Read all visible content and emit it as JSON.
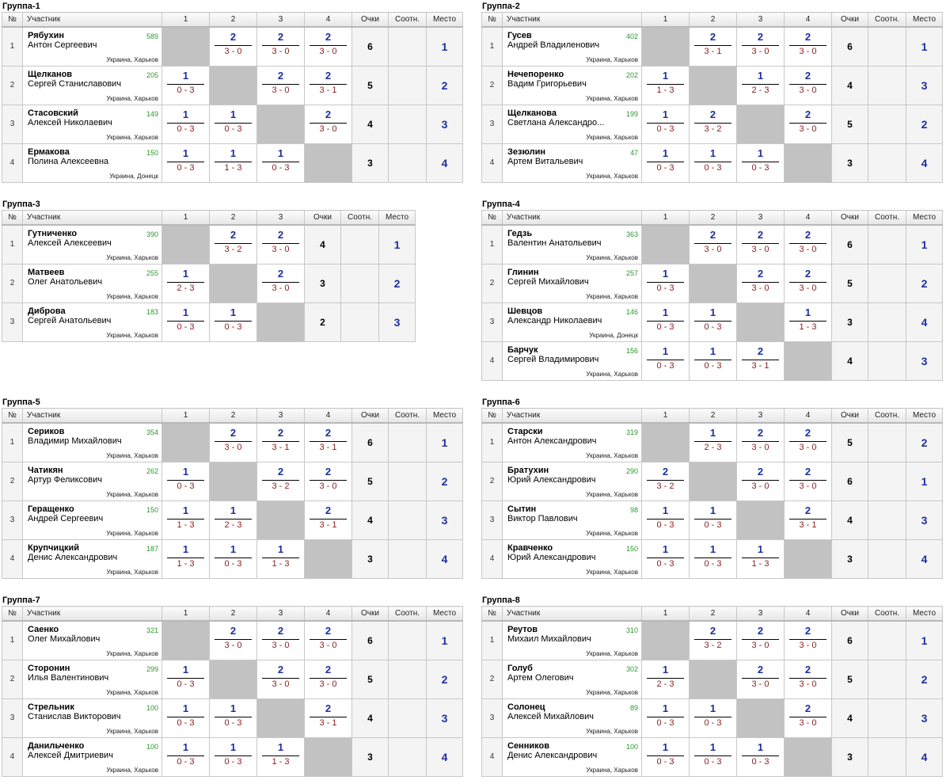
{
  "headers": {
    "num": "№",
    "player": "Участник",
    "points": "Очки",
    "ratio": "Соотн.",
    "place": "Место"
  },
  "groups": [
    {
      "title": "Группа-1",
      "players": [
        {
          "n": "1",
          "surname": "Рябухин",
          "first": "Антон Сергеевич",
          "rating": "589",
          "location": "Украина, Харьков",
          "results": [
            null,
            {
              "p": "2",
              "s": "3 - 0"
            },
            {
              "p": "2",
              "s": "3 - 0"
            },
            {
              "p": "2",
              "s": "3 - 0"
            }
          ],
          "points": "6",
          "place": "1"
        },
        {
          "n": "2",
          "surname": "Щелканов",
          "first": "Сергей Станиславович",
          "rating": "205",
          "location": "Украина, Харьков",
          "results": [
            {
              "p": "1",
              "s": "0 - 3"
            },
            null,
            {
              "p": "2",
              "s": "3 - 0"
            },
            {
              "p": "2",
              "s": "3 - 1"
            }
          ],
          "points": "5",
          "place": "2"
        },
        {
          "n": "3",
          "surname": "Стасовский",
          "first": "Алексей Николаевич",
          "rating": "149",
          "location": "Украина, Харьков",
          "results": [
            {
              "p": "1",
              "s": "0 - 3"
            },
            {
              "p": "1",
              "s": "0 - 3"
            },
            null,
            {
              "p": "2",
              "s": "3 - 0"
            }
          ],
          "points": "4",
          "place": "3"
        },
        {
          "n": "4",
          "surname": "Ермакова",
          "first": "Полина Алексеевна",
          "rating": "150",
          "location": "Украина, Донецк",
          "results": [
            {
              "p": "1",
              "s": "0 - 3"
            },
            {
              "p": "1",
              "s": "1 - 3"
            },
            {
              "p": "1",
              "s": "0 - 3"
            },
            null
          ],
          "points": "3",
          "place": "4"
        }
      ]
    },
    {
      "title": "Группа-2",
      "players": [
        {
          "n": "1",
          "surname": "Гусев",
          "first": "Андрей Владиленович",
          "rating": "402",
          "location": "Украина, Харьков",
          "results": [
            null,
            {
              "p": "2",
              "s": "3 - 1"
            },
            {
              "p": "2",
              "s": "3 - 0"
            },
            {
              "p": "2",
              "s": "3 - 0"
            }
          ],
          "points": "6",
          "place": "1"
        },
        {
          "n": "2",
          "surname": "Нечепоренко",
          "first": "Вадим Григорьевич",
          "rating": "202",
          "location": "Украина, Харьков",
          "results": [
            {
              "p": "1",
              "s": "1 - 3"
            },
            null,
            {
              "p": "1",
              "s": "2 - 3"
            },
            {
              "p": "2",
              "s": "3 - 0"
            }
          ],
          "points": "4",
          "place": "3"
        },
        {
          "n": "3",
          "surname": "Щелканова",
          "first": "Светлана Александро...",
          "rating": "199",
          "location": "Украина, Харьков",
          "results": [
            {
              "p": "1",
              "s": "0 - 3"
            },
            {
              "p": "2",
              "s": "3 - 2"
            },
            null,
            {
              "p": "2",
              "s": "3 - 0"
            }
          ],
          "points": "5",
          "place": "2"
        },
        {
          "n": "4",
          "surname": "Зезюлин",
          "first": "Артем Витальевич",
          "rating": "47",
          "location": "Украина, Харьков",
          "results": [
            {
              "p": "1",
              "s": "0 - 3"
            },
            {
              "p": "1",
              "s": "0 - 3"
            },
            {
              "p": "1",
              "s": "0 - 3"
            },
            null
          ],
          "points": "3",
          "place": "4"
        }
      ]
    },
    {
      "title": "Группа-3",
      "players": [
        {
          "n": "1",
          "surname": "Гутниченко",
          "first": "Алексей Алексеевич",
          "rating": "390",
          "location": "Украина, Харьков",
          "results": [
            null,
            {
              "p": "2",
              "s": "3 - 2"
            },
            {
              "p": "2",
              "s": "3 - 0"
            }
          ],
          "points": "4",
          "place": "1"
        },
        {
          "n": "2",
          "surname": "Матвеев",
          "first": "Олег Анатольевич",
          "rating": "255",
          "location": "Украина, Харьков",
          "results": [
            {
              "p": "1",
              "s": "2 - 3"
            },
            null,
            {
              "p": "2",
              "s": "3 - 0"
            }
          ],
          "points": "3",
          "place": "2"
        },
        {
          "n": "3",
          "surname": "Диброва",
          "first": "Сергей Анатольевич",
          "rating": "183",
          "location": "Украина, Харьков",
          "results": [
            {
              "p": "1",
              "s": "0 - 3"
            },
            {
              "p": "1",
              "s": "0 - 3"
            },
            null
          ],
          "points": "2",
          "place": "3"
        }
      ]
    },
    {
      "title": "Группа-4",
      "players": [
        {
          "n": "1",
          "surname": "Гедзь",
          "first": "Валентин Анатольевич",
          "rating": "363",
          "location": "Украина, Харьков",
          "results": [
            null,
            {
              "p": "2",
              "s": "3 - 0"
            },
            {
              "p": "2",
              "s": "3 - 0"
            },
            {
              "p": "2",
              "s": "3 - 0"
            }
          ],
          "points": "6",
          "place": "1"
        },
        {
          "n": "2",
          "surname": "Глинин",
          "first": "Сергей Михайлович",
          "rating": "257",
          "location": "Украина, Харьков",
          "results": [
            {
              "p": "1",
              "s": "0 - 3"
            },
            null,
            {
              "p": "2",
              "s": "3 - 0"
            },
            {
              "p": "2",
              "s": "3 - 0"
            }
          ],
          "points": "5",
          "place": "2"
        },
        {
          "n": "3",
          "surname": "Шевцов",
          "first": "Александр Николаевич",
          "rating": "146",
          "location": "Украина, Донецк",
          "results": [
            {
              "p": "1",
              "s": "0 - 3"
            },
            {
              "p": "1",
              "s": "0 - 3"
            },
            null,
            {
              "p": "1",
              "s": "1 - 3"
            }
          ],
          "points": "3",
          "place": "4"
        },
        {
          "n": "4",
          "surname": "Барчук",
          "first": "Сергей Владимирович",
          "rating": "156",
          "location": "Украина, Харьков",
          "results": [
            {
              "p": "1",
              "s": "0 - 3"
            },
            {
              "p": "1",
              "s": "0 - 3"
            },
            {
              "p": "2",
              "s": "3 - 1"
            },
            null
          ],
          "points": "4",
          "place": "3"
        }
      ]
    },
    {
      "title": "Группа-5",
      "players": [
        {
          "n": "1",
          "surname": "Сериков",
          "first": "Владимир Михайлович",
          "rating": "354",
          "location": "Украина, Харьков",
          "results": [
            null,
            {
              "p": "2",
              "s": "3 - 0"
            },
            {
              "p": "2",
              "s": "3 - 1"
            },
            {
              "p": "2",
              "s": "3 - 1"
            }
          ],
          "points": "6",
          "place": "1"
        },
        {
          "n": "2",
          "surname": "Чатикян",
          "first": "Артур Феликсович",
          "rating": "262",
          "location": "Украина, Харьков",
          "results": [
            {
              "p": "1",
              "s": "0 - 3"
            },
            null,
            {
              "p": "2",
              "s": "3 - 2"
            },
            {
              "p": "2",
              "s": "3 - 0"
            }
          ],
          "points": "5",
          "place": "2"
        },
        {
          "n": "3",
          "surname": "Геращенко",
          "first": "Андрей Сергеевич",
          "rating": "150",
          "location": "Украина, Харьков",
          "results": [
            {
              "p": "1",
              "s": "1 - 3"
            },
            {
              "p": "1",
              "s": "2 - 3"
            },
            null,
            {
              "p": "2",
              "s": "3 - 1"
            }
          ],
          "points": "4",
          "place": "3"
        },
        {
          "n": "4",
          "surname": "Крупчицкий",
          "first": "Денис Александрович",
          "rating": "187",
          "location": "Украина, Харьков",
          "results": [
            {
              "p": "1",
              "s": "1 - 3"
            },
            {
              "p": "1",
              "s": "0 - 3"
            },
            {
              "p": "1",
              "s": "1 - 3"
            },
            null
          ],
          "points": "3",
          "place": "4"
        }
      ]
    },
    {
      "title": "Группа-6",
      "players": [
        {
          "n": "1",
          "surname": "Старски",
          "first": "Антон Александрович",
          "rating": "319",
          "location": "Украина, Харьков",
          "results": [
            null,
            {
              "p": "1",
              "s": "2 - 3"
            },
            {
              "p": "2",
              "s": "3 - 0"
            },
            {
              "p": "2",
              "s": "3 - 0"
            }
          ],
          "points": "5",
          "place": "2"
        },
        {
          "n": "2",
          "surname": "Братухин",
          "first": "Юрий Александрович",
          "rating": "290",
          "location": "Украина, Харьков",
          "results": [
            {
              "p": "2",
              "s": "3 - 2"
            },
            null,
            {
              "p": "2",
              "s": "3 - 0"
            },
            {
              "p": "2",
              "s": "3 - 0"
            }
          ],
          "points": "6",
          "place": "1"
        },
        {
          "n": "3",
          "surname": "Сытин",
          "first": "Виктор Павлович",
          "rating": "98",
          "location": "Украина, Харьков",
          "results": [
            {
              "p": "1",
              "s": "0 - 3"
            },
            {
              "p": "1",
              "s": "0 - 3"
            },
            null,
            {
              "p": "2",
              "s": "3 - 1"
            }
          ],
          "points": "4",
          "place": "3"
        },
        {
          "n": "4",
          "surname": "Кравченко",
          "first": "Юрий Александрович",
          "rating": "150",
          "location": "Украина, Харьков",
          "results": [
            {
              "p": "1",
              "s": "0 - 3"
            },
            {
              "p": "1",
              "s": "0 - 3"
            },
            {
              "p": "1",
              "s": "1 - 3"
            },
            null
          ],
          "points": "3",
          "place": "4"
        }
      ]
    },
    {
      "title": "Группа-7",
      "players": [
        {
          "n": "1",
          "surname": "Саенко",
          "first": "Олег Михайлович",
          "rating": "321",
          "location": "Украина, Харьков",
          "results": [
            null,
            {
              "p": "2",
              "s": "3 - 0"
            },
            {
              "p": "2",
              "s": "3 - 0"
            },
            {
              "p": "2",
              "s": "3 - 0"
            }
          ],
          "points": "6",
          "place": "1"
        },
        {
          "n": "2",
          "surname": "Сторонин",
          "first": "Илья Валентинович",
          "rating": "299",
          "location": "Украина, Харьков",
          "results": [
            {
              "p": "1",
              "s": "0 - 3"
            },
            null,
            {
              "p": "2",
              "s": "3 - 0"
            },
            {
              "p": "2",
              "s": "3 - 0"
            }
          ],
          "points": "5",
          "place": "2"
        },
        {
          "n": "3",
          "surname": "Стрельник",
          "first": "Станислав Викторович",
          "rating": "100",
          "location": "Украина, Харьков",
          "results": [
            {
              "p": "1",
              "s": "0 - 3"
            },
            {
              "p": "1",
              "s": "0 - 3"
            },
            null,
            {
              "p": "2",
              "s": "3 - 1"
            }
          ],
          "points": "4",
          "place": "3"
        },
        {
          "n": "4",
          "surname": "Данильченко",
          "first": "Алексей Дмитриевич",
          "rating": "100",
          "location": "Украина, Харьков",
          "results": [
            {
              "p": "1",
              "s": "0 - 3"
            },
            {
              "p": "1",
              "s": "0 - 3"
            },
            {
              "p": "1",
              "s": "1 - 3"
            },
            null
          ],
          "points": "3",
          "place": "4"
        }
      ]
    },
    {
      "title": "Группа-8",
      "players": [
        {
          "n": "1",
          "surname": "Реутов",
          "first": "Михаил Михайлович",
          "rating": "310",
          "location": "Украина, Харьков",
          "results": [
            null,
            {
              "p": "2",
              "s": "3 - 2"
            },
            {
              "p": "2",
              "s": "3 - 0"
            },
            {
              "p": "2",
              "s": "3 - 0"
            }
          ],
          "points": "6",
          "place": "1"
        },
        {
          "n": "2",
          "surname": "Голуб",
          "first": "Артем Олегович",
          "rating": "302",
          "location": "Украина, Харьков",
          "results": [
            {
              "p": "1",
              "s": "2 - 3"
            },
            null,
            {
              "p": "2",
              "s": "3 - 0"
            },
            {
              "p": "2",
              "s": "3 - 0"
            }
          ],
          "points": "5",
          "place": "2"
        },
        {
          "n": "3",
          "surname": "Солонец",
          "first": "Алексей Михайлович",
          "rating": "89",
          "location": "Украина, Харьков",
          "results": [
            {
              "p": "1",
              "s": "0 - 3"
            },
            {
              "p": "1",
              "s": "0 - 3"
            },
            null,
            {
              "p": "2",
              "s": "3 - 0"
            }
          ],
          "points": "4",
          "place": "3"
        },
        {
          "n": "4",
          "surname": "Сенников",
          "first": "Денис Александрович",
          "rating": "100",
          "location": "Украина, Харьков",
          "results": [
            {
              "p": "1",
              "s": "0 - 3"
            },
            {
              "p": "1",
              "s": "0 - 3"
            },
            {
              "p": "1",
              "s": "0 - 3"
            },
            null
          ],
          "points": "3",
          "place": "4"
        }
      ]
    }
  ]
}
